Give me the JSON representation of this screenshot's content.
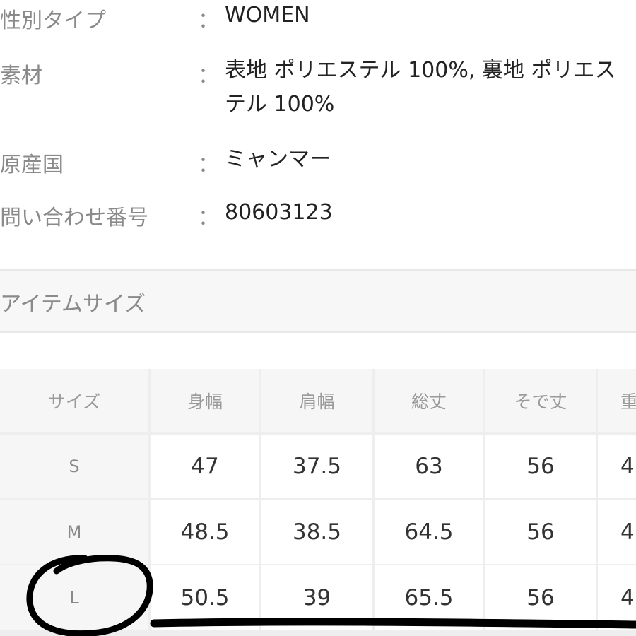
{
  "info": [
    {
      "label": "性別タイプ",
      "value": "WOMEN"
    },
    {
      "label": "素材",
      "value": "表地 ポリエステル 100%, 裏地 ポリエステル 100%"
    },
    {
      "label": "原産国",
      "value": "ミャンマー"
    },
    {
      "label": "問い合わせ番号",
      "value": "80603123"
    }
  ],
  "colon": "：",
  "section_title": "アイテムサイズ",
  "table": {
    "headers": [
      "サイズ",
      "身幅",
      "肩幅",
      "総丈",
      "そで丈",
      "重"
    ],
    "rows": [
      [
        "S",
        "47",
        "37.5",
        "63",
        "56",
        "4"
      ],
      [
        "M",
        "48.5",
        "38.5",
        "64.5",
        "56",
        "4"
      ],
      [
        "L",
        "50.5",
        "39",
        "65.5",
        "56",
        "4"
      ]
    ]
  },
  "annotation": {
    "highlighted_size": "L",
    "ink_color": "#000000"
  }
}
